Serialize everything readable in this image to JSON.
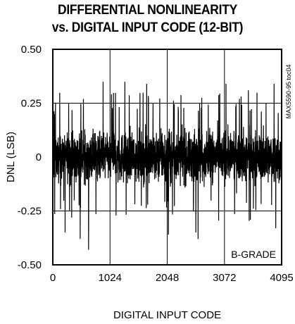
{
  "chart_data": {
    "type": "line",
    "title_line1": "DIFFERENTIAL NONLINEARITY",
    "title_line2": "vs. DIGITAL INPUT CODE (12-BIT)",
    "xlabel": "DIGITAL INPUT CODE",
    "ylabel": "DNL (LSB)",
    "xlim": [
      0,
      4095
    ],
    "ylim": [
      -0.5,
      0.5
    ],
    "x_ticks": [
      0,
      1024,
      2048,
      3072,
      4095
    ],
    "x_tick_labels": [
      "0",
      "1024",
      "2048",
      "3072",
      "4095"
    ],
    "y_ticks": [
      0.5,
      0.25,
      0,
      -0.25,
      -0.5
    ],
    "y_tick_labels": [
      "0.50",
      "0.25",
      "0",
      "-0.25",
      "-0.50"
    ],
    "grid": true,
    "annotation": "B-GRADE",
    "figure_id": "MAX5590-95 toc04",
    "series": [
      {
        "color": "#000000",
        "noise_band": {
          "typical_amplitude": 0.15,
          "max_positive": 0.35,
          "max_negative": -0.43
        },
        "extreme_spikes": [
          {
            "x": 30,
            "y": 0.2
          },
          {
            "x": 220,
            "y": -0.35
          },
          {
            "x": 490,
            "y": -0.38
          },
          {
            "x": 640,
            "y": -0.43
          },
          {
            "x": 900,
            "y": 0.35
          },
          {
            "x": 1290,
            "y": 0.35
          },
          {
            "x": 1680,
            "y": 0.34
          },
          {
            "x": 2070,
            "y": -0.36
          },
          {
            "x": 2560,
            "y": -0.35
          },
          {
            "x": 2600,
            "y": -0.38
          },
          {
            "x": 3100,
            "y": 0.34
          },
          {
            "x": 3500,
            "y": 0.31
          },
          {
            "x": 3960,
            "y": 0.34
          },
          {
            "x": 3990,
            "y": -0.33
          }
        ]
      }
    ]
  }
}
